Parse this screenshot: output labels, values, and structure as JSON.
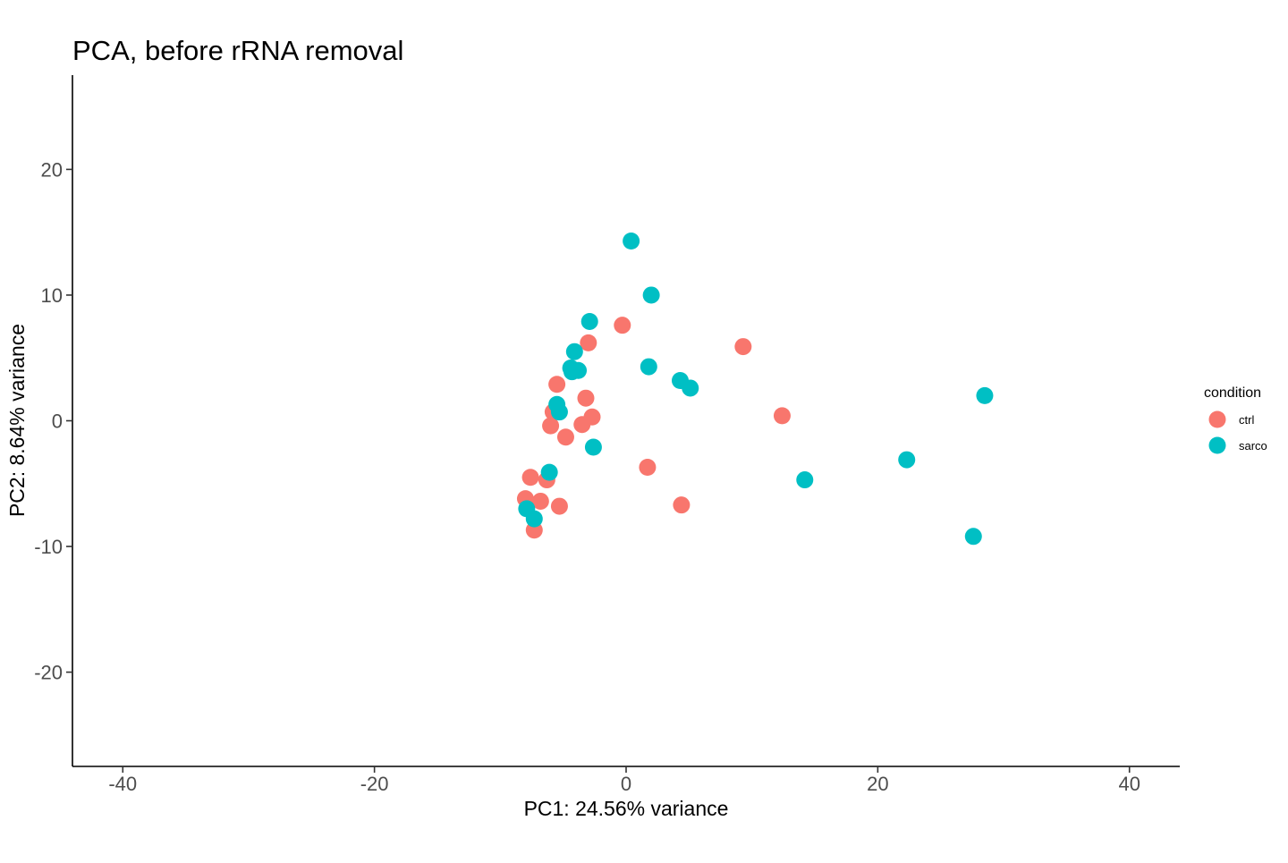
{
  "chart_data": {
    "type": "scatter",
    "title": "PCA, before rRNA removal",
    "xlabel": "PC1: 24.56% variance",
    "ylabel": "PC2: 8.64% variance",
    "xlim": [
      -44,
      44
    ],
    "ylim": [
      -27.5,
      27.5
    ],
    "x_ticks": [
      -40,
      -20,
      0,
      20,
      40
    ],
    "y_ticks": [
      -20,
      -10,
      0,
      10,
      20
    ],
    "x_tick_labels": [
      "-40",
      "-20",
      "0",
      "20",
      "40"
    ],
    "y_tick_labels": [
      "-20",
      "-10",
      "0",
      "10",
      "20"
    ],
    "grid": false,
    "legend": {
      "title": "condition",
      "position": "right"
    },
    "series": [
      {
        "name": "ctrl",
        "color": "#F8766D",
        "points": [
          {
            "x": -0.3,
            "y": 7.6
          },
          {
            "x": 9.3,
            "y": 5.9
          },
          {
            "x": 12.4,
            "y": 0.4
          },
          {
            "x": -3.0,
            "y": 6.2
          },
          {
            "x": -5.5,
            "y": 2.9
          },
          {
            "x": -3.2,
            "y": 1.8
          },
          {
            "x": -5.8,
            "y": 0.7
          },
          {
            "x": -2.7,
            "y": 0.3
          },
          {
            "x": -3.5,
            "y": -0.3
          },
          {
            "x": -6.0,
            "y": -0.4
          },
          {
            "x": -4.8,
            "y": -1.3
          },
          {
            "x": 1.7,
            "y": -3.7
          },
          {
            "x": -7.6,
            "y": -4.5
          },
          {
            "x": -6.3,
            "y": -4.7
          },
          {
            "x": -8.0,
            "y": -6.2
          },
          {
            "x": -6.8,
            "y": -6.4
          },
          {
            "x": -5.3,
            "y": -6.8
          },
          {
            "x": 4.4,
            "y": -6.7
          },
          {
            "x": -7.3,
            "y": -8.7
          }
        ]
      },
      {
        "name": "sarco",
        "color": "#00BFC4",
        "points": [
          {
            "x": 0.4,
            "y": 14.3
          },
          {
            "x": 2.0,
            "y": 10.0
          },
          {
            "x": -2.9,
            "y": 7.9
          },
          {
            "x": -4.1,
            "y": 5.5
          },
          {
            "x": -4.4,
            "y": 4.2
          },
          {
            "x": -3.8,
            "y": 4.0
          },
          {
            "x": -4.3,
            "y": 3.9
          },
          {
            "x": 1.8,
            "y": 4.3
          },
          {
            "x": 4.3,
            "y": 3.2
          },
          {
            "x": 5.1,
            "y": 2.6
          },
          {
            "x": 28.5,
            "y": 2.0
          },
          {
            "x": -5.5,
            "y": 1.3
          },
          {
            "x": -5.3,
            "y": 0.7
          },
          {
            "x": -2.6,
            "y": -2.1
          },
          {
            "x": -6.1,
            "y": -4.1
          },
          {
            "x": 14.2,
            "y": -4.7
          },
          {
            "x": 22.3,
            "y": -3.1
          },
          {
            "x": -7.9,
            "y": -7.0
          },
          {
            "x": -7.3,
            "y": -7.8
          },
          {
            "x": 27.6,
            "y": -9.2
          }
        ]
      }
    ]
  }
}
